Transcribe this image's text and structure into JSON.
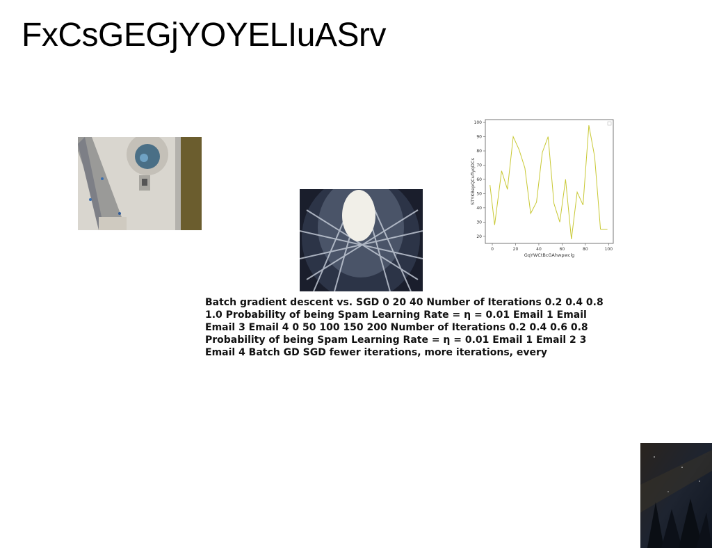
{
  "title": "FxCsGEGjYOYELIuASrv",
  "text_block": "Batch gradient descent vs. SGD 0 20 40 Number of Iterations 0.2 0.4 0.8 1.0 Probability of being Spam Learning Rate = η = 0.01 Email 1 Email Email 3 Email 4 0 50 100 150 200 Number of Iterations 0.2 0.4 0.6 0.8 Probability of being Spam Learning Rate = η = 0.01 Email 1 Email 2 3 Email 4 Batch GD SGD fewer iterations, more iterations, every",
  "images": [
    {
      "name": "aerial-photo"
    },
    {
      "name": "tunnel-ceiling-photo"
    },
    {
      "name": "night-sky-photo"
    }
  ],
  "chart_data": {
    "type": "line",
    "xlabel": "GqYWCtBcGAhwpwclg",
    "ylabel": "STYKBepQCuflyqDCs",
    "xlim": [
      -6,
      104
    ],
    "ylim": [
      15,
      102
    ],
    "xticks": [
      0,
      20,
      40,
      60,
      80,
      100
    ],
    "yticks": [
      20,
      30,
      40,
      50,
      60,
      70,
      80,
      90,
      100
    ],
    "grid": false,
    "line_color": "#c8c832",
    "x": [
      -2,
      2,
      8,
      13,
      18,
      23,
      28,
      33,
      38,
      43,
      48,
      53,
      58,
      63,
      68,
      73,
      78,
      83,
      88,
      93,
      99
    ],
    "y": [
      56,
      28,
      66,
      53,
      90,
      81,
      68,
      36,
      44,
      79,
      90,
      43,
      30,
      60,
      18,
      51,
      42,
      98,
      76,
      25,
      25
    ]
  }
}
